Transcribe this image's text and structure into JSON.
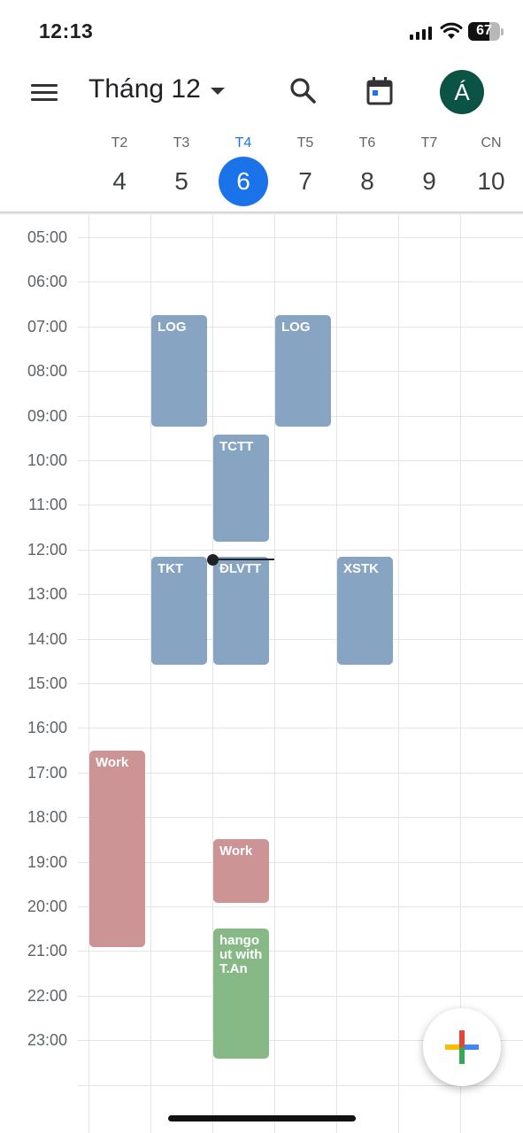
{
  "status_bar": {
    "time": "12:13",
    "battery": "67",
    "battery_level": 0.67
  },
  "header": {
    "month_label": "Tháng 12",
    "avatar_initial": "Á"
  },
  "icons": {
    "menu": "menu-icon",
    "dropdown": "chevron-down-icon",
    "search": "search-icon",
    "today": "calendar-today-icon",
    "create": "plus-icon",
    "signal": "cellular-signal-icon",
    "wifi": "wifi-icon",
    "battery": "battery-icon"
  },
  "days": [
    {
      "name": "T2",
      "date": "4"
    },
    {
      "name": "T3",
      "date": "5"
    },
    {
      "name": "T4",
      "date": "6",
      "today": true
    },
    {
      "name": "T5",
      "date": "7"
    },
    {
      "name": "T6",
      "date": "8"
    },
    {
      "name": "T7",
      "date": "9"
    },
    {
      "name": "CN",
      "date": "10"
    }
  ],
  "hours": [
    "05:00",
    "06:00",
    "07:00",
    "08:00",
    "09:00",
    "10:00",
    "11:00",
    "12:00",
    "13:00",
    "14:00",
    "15:00",
    "16:00",
    "17:00",
    "18:00",
    "19:00",
    "20:00",
    "21:00",
    "22:00",
    "23:00"
  ],
  "current_time": "12:13",
  "events": [
    {
      "title": "LOG",
      "day": "T3",
      "start": "06:45",
      "end": "09:15",
      "color": "#87a4c2"
    },
    {
      "title": "LOG",
      "day": "T5",
      "start": "06:45",
      "end": "09:15",
      "color": "#87a4c2"
    },
    {
      "title": "TCTT",
      "day": "T4",
      "start": "09:25",
      "end": "11:50",
      "color": "#87a4c2"
    },
    {
      "title": "TKT",
      "day": "T3",
      "start": "12:10",
      "end": "14:35",
      "color": "#87a4c2"
    },
    {
      "title": "ĐLVTT",
      "day": "T4",
      "start": "12:10",
      "end": "14:35",
      "color": "#87a4c2"
    },
    {
      "title": "XSTK",
      "day": "T6",
      "start": "12:10",
      "end": "14:35",
      "color": "#87a4c2"
    },
    {
      "title": "Work",
      "day": "T2",
      "start": "16:30",
      "end": "20:55",
      "color": "#cc9494"
    },
    {
      "title": "Work",
      "day": "T4",
      "start": "18:30",
      "end": "19:55",
      "color": "#cc9494"
    },
    {
      "title": "hangout with T.An",
      "day": "T4",
      "start": "20:30",
      "end": "23:25",
      "color": "#86b985"
    }
  ]
}
